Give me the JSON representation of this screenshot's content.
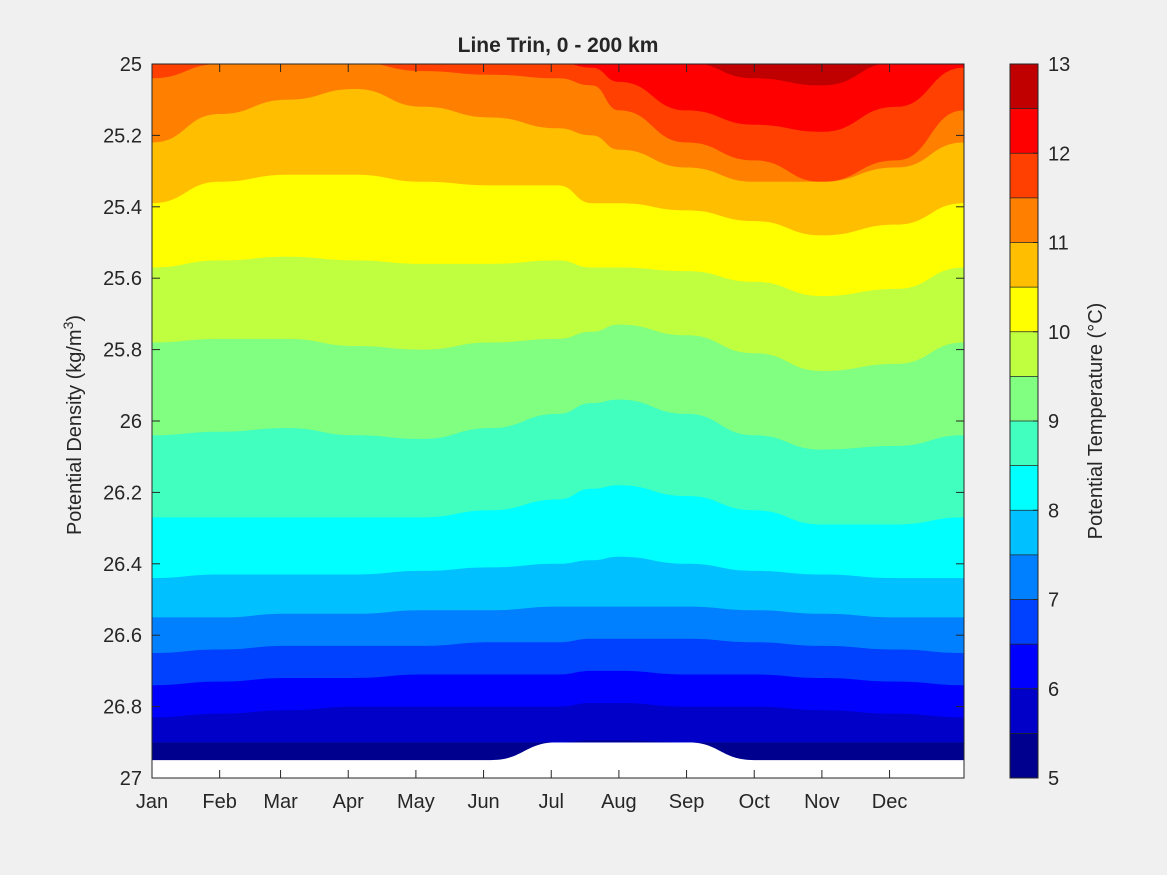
{
  "chart_data": {
    "type": "contour",
    "title": "Line Trin, 0 - 200 km",
    "ylabel_main": "Potential Density (kg/m",
    "ylabel_sup": "3",
    "ylabel_close": ")",
    "colorbar_label": "Potential Temperature (°C)",
    "x_axis": {
      "type": "month",
      "range": [
        0,
        12
      ],
      "tick_labels": [
        "Jan",
        "Feb",
        "Mar",
        "Apr",
        "May",
        "Jun",
        "Jul",
        "Aug",
        "Sep",
        "Oct",
        "Nov",
        "Dec"
      ],
      "tick_positions": [
        0,
        1,
        1.9,
        2.9,
        3.9,
        4.9,
        5.9,
        6.9,
        7.9,
        8.9,
        9.9,
        10.9
      ]
    },
    "y_axis": {
      "range": [
        25,
        27
      ],
      "reversed": true,
      "ticks": [
        25,
        25.2,
        25.4,
        25.6,
        25.8,
        26,
        26.2,
        26.4,
        26.6,
        26.8,
        27
      ],
      "tick_labels": [
        "25",
        "25.2",
        "25.4",
        "25.6",
        "25.8",
        "26",
        "26.2",
        "26.4",
        "26.6",
        "26.8",
        "27"
      ]
    },
    "colorbar": {
      "range": [
        5,
        13
      ],
      "ticks": [
        5,
        6,
        7,
        8,
        9,
        10,
        11,
        12,
        13
      ],
      "tick_labels": [
        "5",
        "6",
        "7",
        "8",
        "9",
        "10",
        "11",
        "12",
        "13"
      ],
      "level_step": 0.5,
      "colors": [
        "#00008f",
        "#0000c8",
        "#0000ff",
        "#0040ff",
        "#0080ff",
        "#00c0ff",
        "#00ffff",
        "#40ffbf",
        "#80ff80",
        "#c0ff40",
        "#ffff00",
        "#ffbf00",
        "#ff8000",
        "#ff4000",
        "#ff0000",
        "#c00000"
      ]
    },
    "data_max_density": 26.9,
    "months": [
      0,
      1,
      2,
      3,
      4,
      5,
      6,
      6.5,
      6.9,
      7.9,
      8.9,
      9.9,
      11,
      12
    ],
    "isotherms": [
      {
        "temp": 12.5,
        "density": [
          null,
          null,
          null,
          null,
          null,
          null,
          null,
          null,
          null,
          24.995,
          25.04,
          25.06,
          24.995,
          null
        ]
      },
      {
        "temp": 12.0,
        "density": [
          null,
          null,
          null,
          null,
          null,
          null,
          24.995,
          25.01,
          25.05,
          25.13,
          25.17,
          25.19,
          25.12,
          25.01
        ]
      },
      {
        "temp": 11.5,
        "density": [
          25.04,
          25.0,
          24.995,
          24.995,
          25.02,
          25.03,
          25.04,
          25.06,
          25.13,
          25.22,
          25.27,
          25.33,
          25.27,
          25.13
        ]
      },
      {
        "temp": 11.0,
        "density": [
          25.22,
          25.14,
          25.1,
          25.07,
          25.12,
          25.15,
          25.18,
          25.2,
          25.24,
          25.29,
          25.33,
          25.33,
          25.29,
          25.22
        ]
      },
      {
        "temp": 10.5,
        "density": [
          25.39,
          25.33,
          25.31,
          25.31,
          25.33,
          25.34,
          25.34,
          25.39,
          25.39,
          25.41,
          25.44,
          25.48,
          25.45,
          25.39
        ]
      },
      {
        "temp": 10.0,
        "density": [
          25.57,
          25.55,
          25.54,
          25.55,
          25.56,
          25.56,
          25.55,
          25.57,
          25.57,
          25.58,
          25.61,
          25.65,
          25.63,
          25.57
        ]
      },
      {
        "temp": 9.5,
        "density": [
          25.78,
          25.77,
          25.77,
          25.79,
          25.8,
          25.78,
          25.77,
          25.75,
          25.73,
          25.76,
          25.81,
          25.86,
          25.84,
          25.78
        ]
      },
      {
        "temp": 9.0,
        "density": [
          26.04,
          26.03,
          26.02,
          26.04,
          26.05,
          26.02,
          25.98,
          25.95,
          25.94,
          25.98,
          26.04,
          26.08,
          26.07,
          26.04
        ]
      },
      {
        "temp": 8.5,
        "density": [
          26.27,
          26.27,
          26.27,
          26.27,
          26.27,
          26.25,
          26.22,
          26.19,
          26.18,
          26.21,
          26.25,
          26.29,
          26.29,
          26.27
        ]
      },
      {
        "temp": 8.0,
        "density": [
          26.44,
          26.43,
          26.43,
          26.43,
          26.42,
          26.41,
          26.4,
          26.39,
          26.38,
          26.4,
          26.42,
          26.43,
          26.44,
          26.44
        ]
      },
      {
        "temp": 7.5,
        "density": [
          26.55,
          26.55,
          26.54,
          26.54,
          26.53,
          26.53,
          26.52,
          26.52,
          26.52,
          26.52,
          26.53,
          26.54,
          26.55,
          26.55
        ]
      },
      {
        "temp": 7.0,
        "density": [
          26.65,
          26.64,
          26.63,
          26.63,
          26.63,
          26.62,
          26.62,
          26.61,
          26.61,
          26.61,
          26.62,
          26.63,
          26.64,
          26.65
        ]
      },
      {
        "temp": 6.5,
        "density": [
          26.74,
          26.73,
          26.72,
          26.72,
          26.71,
          26.71,
          26.71,
          26.7,
          26.7,
          26.71,
          26.71,
          26.72,
          26.73,
          26.74
        ]
      },
      {
        "temp": 6.0,
        "density": [
          26.83,
          26.82,
          26.81,
          26.8,
          26.8,
          26.8,
          26.8,
          26.79,
          26.79,
          26.8,
          26.8,
          26.81,
          26.82,
          26.83
        ]
      },
      {
        "temp": 5.5,
        "density": [
          null,
          null,
          null,
          null,
          null,
          null,
          26.9,
          26.895,
          26.895,
          26.9,
          null,
          null,
          null,
          null
        ]
      }
    ],
    "fill_below_level": 5.5
  }
}
